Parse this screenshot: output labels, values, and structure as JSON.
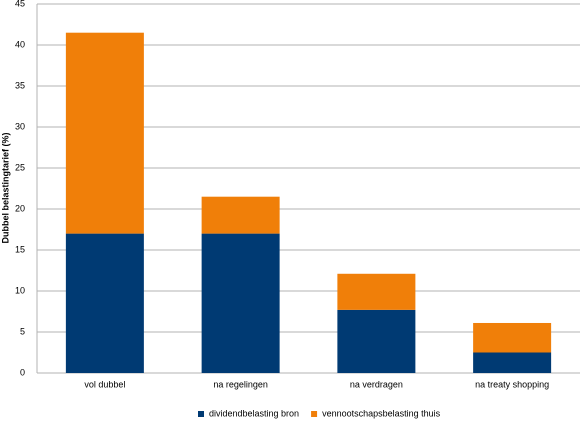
{
  "chart_data": {
    "type": "stacked_bar",
    "y_label": "Dubbel belastingtarief (%)",
    "categories": [
      "vol dubbel",
      "na regelingen",
      "na verdragen",
      "na treaty shopping"
    ],
    "series": [
      {
        "name": "dividendbelasting bron",
        "color": "#003a73",
        "values": [
          17,
          17,
          7.7,
          2.5
        ]
      },
      {
        "name": "vennootschapsbelasting thuis",
        "color": "#f07f09",
        "values": [
          24.5,
          4.5,
          4.4,
          3.6
        ]
      }
    ],
    "ylim": [
      0,
      45
    ],
    "yticks": [
      0,
      5,
      10,
      15,
      20,
      25,
      30,
      35,
      40,
      45
    ],
    "grid": true
  }
}
